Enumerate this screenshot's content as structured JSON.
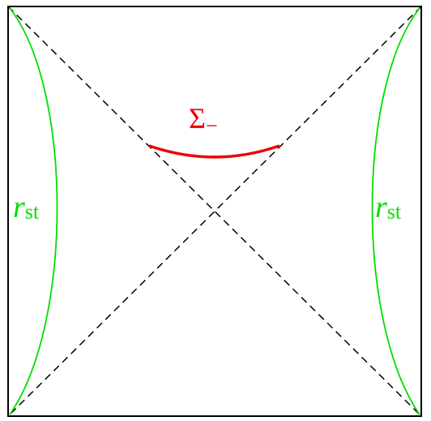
{
  "labels": [
    {
      "text": "Σ",
      "subscript": "−"
    },
    {
      "text": "r",
      "subscript": "st"
    },
    {
      "text": "r",
      "subscript": "st"
    }
  ]
}
